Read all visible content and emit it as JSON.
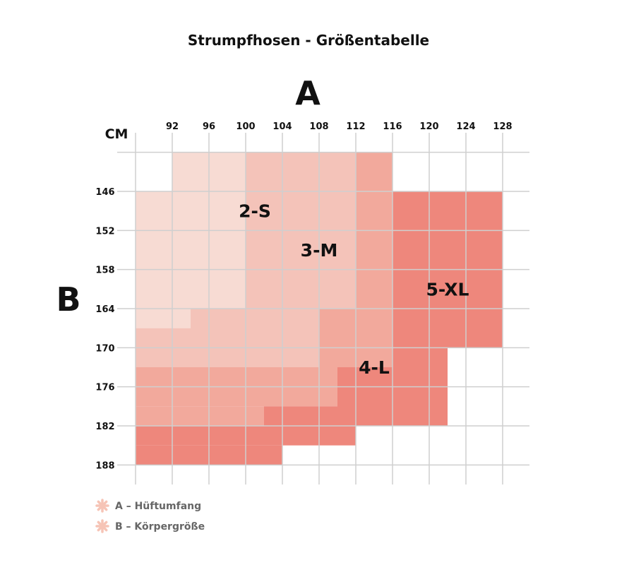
{
  "chart_data": {
    "type": "heatmap",
    "title": "Strumpfhosen - Größentabelle",
    "x_axis": {
      "label": "A",
      "unit": "CM",
      "ticks": [
        92,
        96,
        100,
        104,
        108,
        112,
        116,
        120,
        124,
        128
      ],
      "range": [
        88,
        130
      ]
    },
    "y_axis": {
      "label": "B",
      "ticks": [
        146,
        152,
        158,
        164,
        170,
        176,
        182,
        188
      ],
      "range": [
        140,
        191
      ]
    },
    "grid": true,
    "sizes": [
      {
        "name": "2-S",
        "color": "#f7dbd3",
        "label_at": [
          101,
          149
        ],
        "regions": [
          [
            92,
            100,
            140,
            146
          ],
          [
            88,
            100,
            146,
            164
          ],
          [
            88,
            94,
            164,
            167
          ]
        ]
      },
      {
        "name": "3-M",
        "color": "#f4c3b9",
        "label_at": [
          108,
          155
        ],
        "regions": [
          [
            100,
            112,
            140,
            164
          ],
          [
            94,
            108,
            164,
            173
          ],
          [
            88,
            94,
            167,
            173
          ]
        ]
      },
      {
        "name": "4-L",
        "color": "#f2a99c",
        "label_at": [
          114,
          173
        ],
        "regions": [
          [
            112,
            116,
            140,
            146
          ],
          [
            112,
            116,
            146,
            164
          ],
          [
            108,
            116,
            164,
            173
          ],
          [
            88,
            110,
            173,
            179
          ],
          [
            88,
            102,
            179,
            182
          ]
        ]
      },
      {
        "name": "5-XL",
        "color": "#ee877c",
        "label_at": [
          122,
          161
        ],
        "regions": [
          [
            116,
            128,
            146,
            170
          ],
          [
            116,
            122,
            170,
            182
          ],
          [
            110,
            116,
            173,
            182
          ],
          [
            102,
            110,
            179,
            182
          ],
          [
            88,
            112,
            182,
            185
          ],
          [
            88,
            104,
            185,
            188
          ]
        ]
      }
    ],
    "legend": {
      "placement": "bottom-left",
      "marker_color": "#f6c4b6",
      "items": [
        "A – Hüftumfang",
        "B – Körpergröße"
      ]
    }
  }
}
